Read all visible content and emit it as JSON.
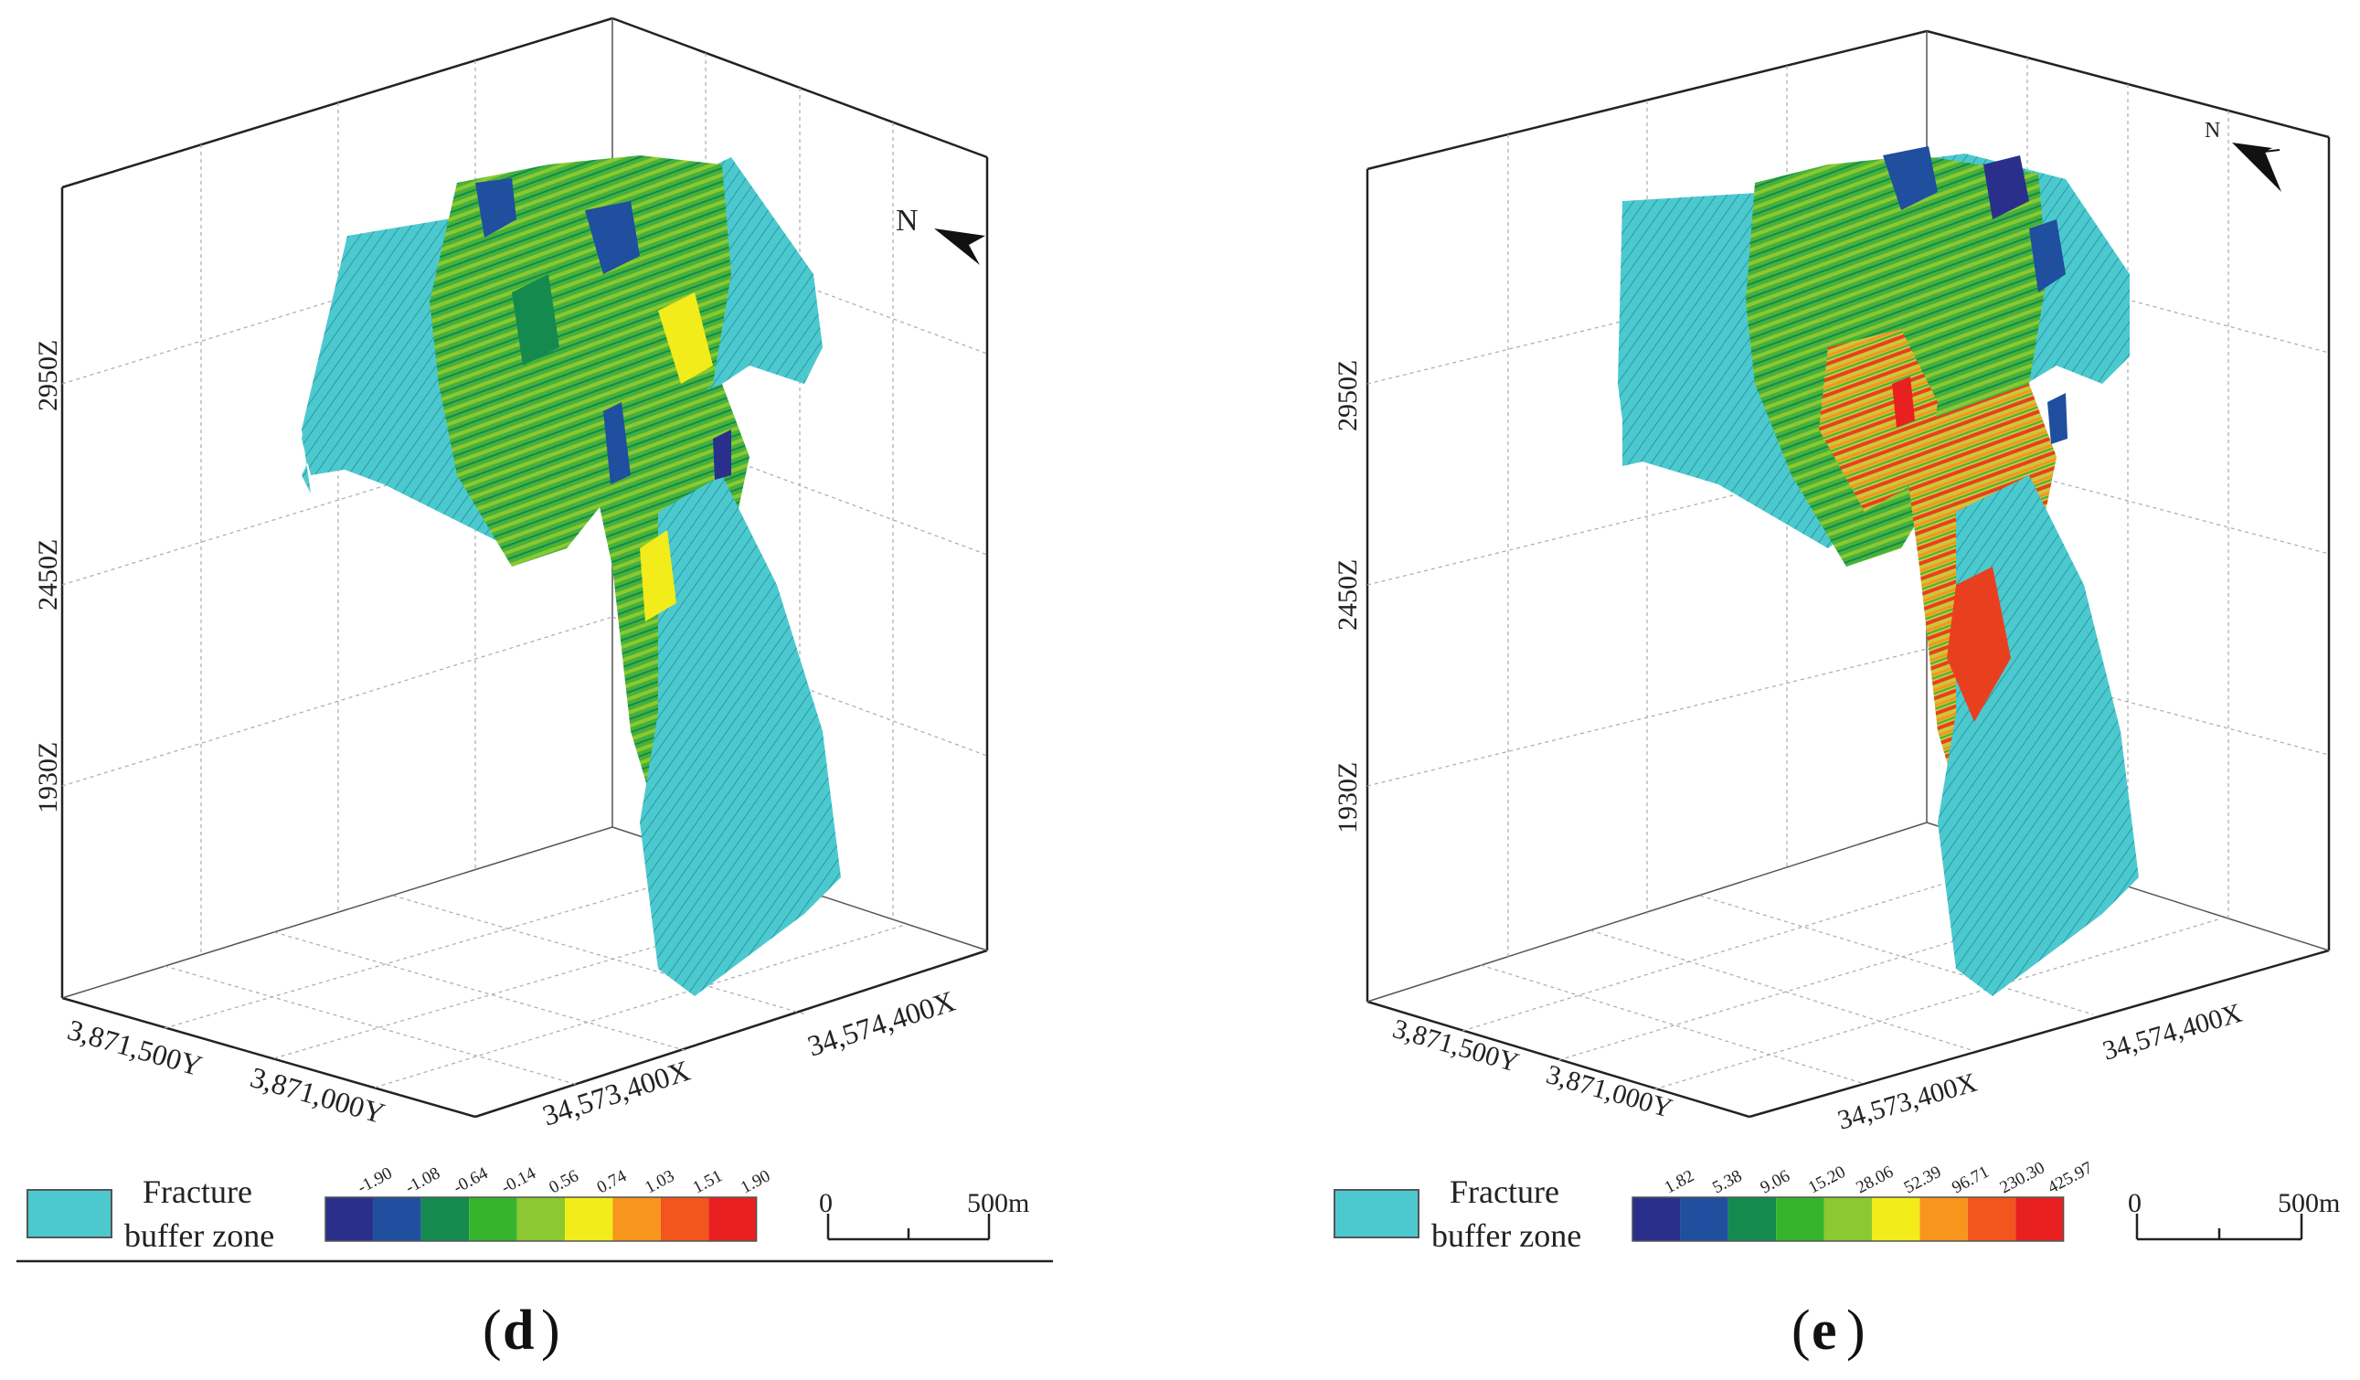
{
  "panels": [
    {
      "id": "d",
      "caption_letter": "d",
      "z_ticks": [
        "2950Z",
        "2450Z",
        "1930Z"
      ],
      "y_ticks": [
        "3,871,500Y",
        "3,871,000Y"
      ],
      "x_ticks": [
        "34,573,400X",
        "34,574,400X"
      ],
      "north_label": "N",
      "legend": {
        "buffer_label_line1": "Fracture",
        "buffer_label_line2": "buffer zone",
        "buffer_color": "#4cc9cf",
        "class_labels": [
          "-1.90",
          "-1.08",
          "-0.64",
          "-0.14",
          "0.56",
          "0.74",
          "1.03",
          "1.51",
          "1.90"
        ],
        "class_colors": [
          "#2b2f8c",
          "#1f4f9e",
          "#148a4f",
          "#36b42c",
          "#8cc832",
          "#f2ec1a",
          "#f7951d",
          "#f2561d",
          "#e8201f"
        ]
      },
      "scale_bar": {
        "start_label": "0",
        "end_label": "500m"
      }
    },
    {
      "id": "e",
      "caption_letter": "e",
      "z_ticks": [
        "2950Z",
        "2450Z",
        "1930Z"
      ],
      "y_ticks": [
        "3,871,500Y",
        "3,871,000Y"
      ],
      "x_ticks": [
        "34,573,400X",
        "34,574,400X"
      ],
      "north_label": "N",
      "legend": {
        "buffer_label_line1": "Fracture",
        "buffer_label_line2": "buffer zone",
        "buffer_color": "#4cc9cf",
        "class_labels": [
          "1.82",
          "5.38",
          "9.06",
          "15.20",
          "28.06",
          "52.39",
          "96.71",
          "230.30",
          "425.97"
        ],
        "class_colors": [
          "#2b2f8c",
          "#1f4f9e",
          "#148a4f",
          "#36b42c",
          "#8cc832",
          "#f2ec1a",
          "#f7951d",
          "#f2561d",
          "#e8201f"
        ]
      },
      "scale_bar": {
        "start_label": "0",
        "end_label": "500m"
      }
    }
  ]
}
